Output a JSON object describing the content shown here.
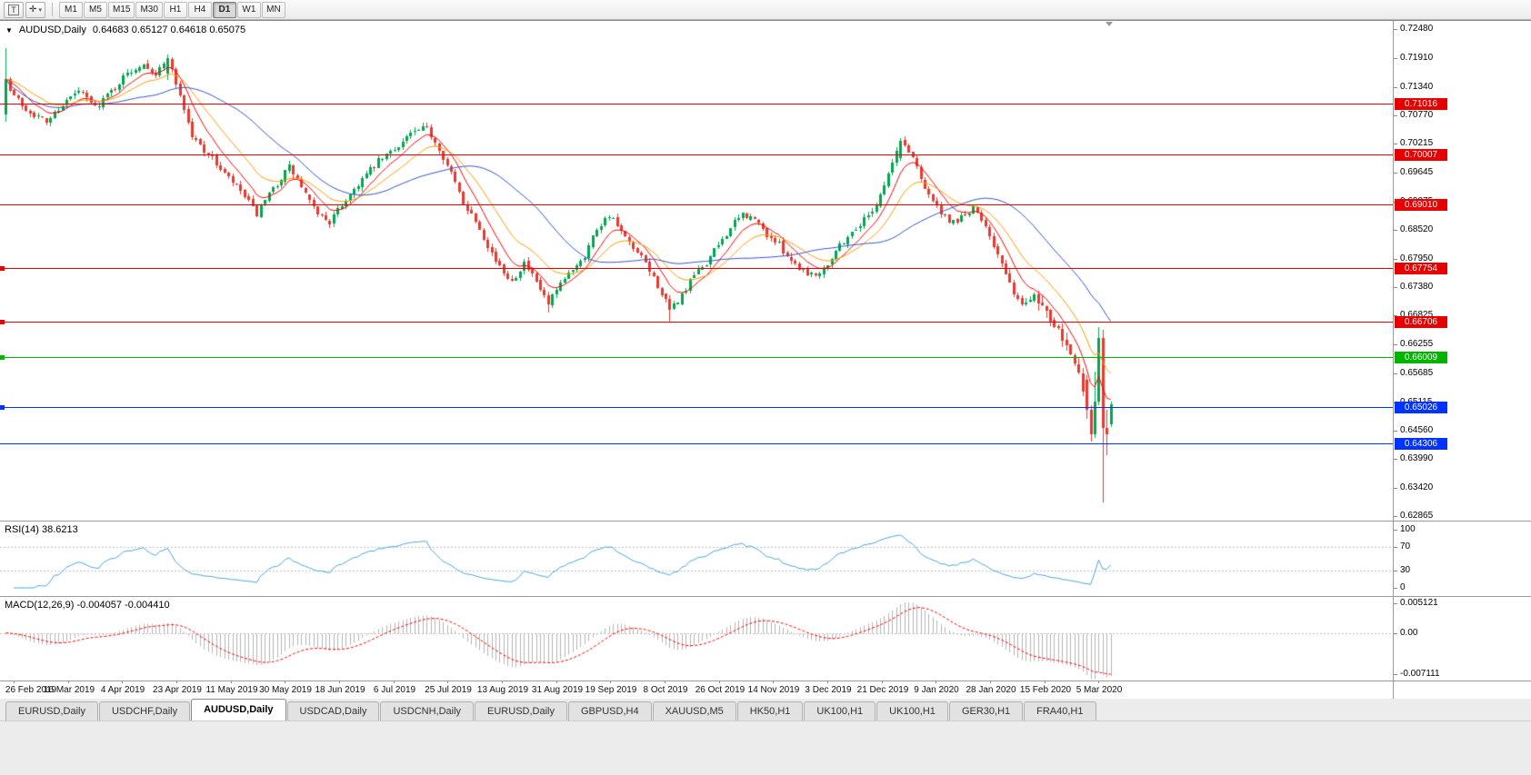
{
  "toolbar": {
    "template_icon_glyph": "T",
    "crosshair_icon_glyph": "✛",
    "caret_glyph": "▾",
    "timeframes": [
      {
        "label": "M1",
        "active": false
      },
      {
        "label": "M5",
        "active": false
      },
      {
        "label": "M15",
        "active": false
      },
      {
        "label": "M30",
        "active": false
      },
      {
        "label": "H1",
        "active": false
      },
      {
        "label": "H4",
        "active": false
      },
      {
        "label": "D1",
        "active": true
      },
      {
        "label": "W1",
        "active": false
      },
      {
        "label": "MN",
        "active": false
      }
    ]
  },
  "chart": {
    "title": {
      "triangle": "▼",
      "symbol": "AUDUSD,Daily",
      "ohlc": "0.64683 0.65127 0.64618 0.65075"
    },
    "rsi_label": "RSI(14) 38.6213",
    "macd_label": "MACD(12,26,9) -0.004057 -0.004410"
  },
  "chart_data": {
    "type": "candlestick",
    "symbol": "AUDUSD",
    "timeframe": "Daily",
    "ohlc_current": {
      "open": 0.64683,
      "high": 0.65127,
      "low": 0.64618,
      "close": 0.65075
    },
    "price_scale": {
      "max": 0.7248,
      "min": 0.62865
    },
    "y_axis_ticks": [
      0.7248,
      0.7191,
      0.7134,
      0.7077,
      0.70215,
      0.69645,
      0.69075,
      0.6852,
      0.6795,
      0.6738,
      0.66825,
      0.66255,
      0.65685,
      0.65115,
      0.6456,
      0.6399,
      0.6342,
      0.62865
    ],
    "x_axis_dates": [
      "26 Feb 2019",
      "16 Mar 2019",
      "4 Apr 2019",
      "23 Apr 2019",
      "11 May 2019",
      "30 May 2019",
      "18 Jun 2019",
      "6 Jul 2019",
      "25 Jul 2019",
      "13 Aug 2019",
      "31 Aug 2019",
      "19 Sep 2019",
      "8 Oct 2019",
      "26 Oct 2019",
      "14 Nov 2019",
      "3 Dec 2019",
      "21 Dec 2019",
      "9 Jan 2020",
      "28 Jan 2020",
      "15 Feb 2020",
      "5 Mar 2020"
    ],
    "num_candles": 274,
    "close_anchors": [
      [
        0,
        0.7135
      ],
      [
        5,
        0.709
      ],
      [
        10,
        0.7065
      ],
      [
        14,
        0.71
      ],
      [
        18,
        0.7125
      ],
      [
        22,
        0.7095
      ],
      [
        26,
        0.7125
      ],
      [
        30,
        0.716
      ],
      [
        34,
        0.7182
      ],
      [
        37,
        0.7158
      ],
      [
        40,
        0.719
      ],
      [
        43,
        0.7118
      ],
      [
        46,
        0.7035
      ],
      [
        50,
        0.7002
      ],
      [
        54,
        0.6962
      ],
      [
        58,
        0.6928
      ],
      [
        62,
        0.6882
      ],
      [
        66,
        0.6932
      ],
      [
        70,
        0.6976
      ],
      [
        73,
        0.6936
      ],
      [
        76,
        0.6892
      ],
      [
        80,
        0.6866
      ],
      [
        84,
        0.6912
      ],
      [
        88,
        0.6952
      ],
      [
        92,
        0.6986
      ],
      [
        96,
        0.7012
      ],
      [
        100,
        0.7042
      ],
      [
        104,
        0.7052
      ],
      [
        107,
        0.7012
      ],
      [
        110,
        0.6962
      ],
      [
        113,
        0.6906
      ],
      [
        116,
        0.6872
      ],
      [
        119,
        0.6822
      ],
      [
        122,
        0.6776
      ],
      [
        125,
        0.6752
      ],
      [
        128,
        0.6786
      ],
      [
        131,
        0.6746
      ],
      [
        134,
        0.6706
      ],
      [
        137,
        0.6742
      ],
      [
        140,
        0.6776
      ],
      [
        143,
        0.6802
      ],
      [
        146,
        0.6856
      ],
      [
        149,
        0.6882
      ],
      [
        152,
        0.6846
      ],
      [
        155,
        0.6812
      ],
      [
        158,
        0.6786
      ],
      [
        161,
        0.6742
      ],
      [
        164,
        0.6692
      ],
      [
        167,
        0.6722
      ],
      [
        170,
        0.6762
      ],
      [
        173,
        0.6786
      ],
      [
        176,
        0.6822
      ],
      [
        179,
        0.6856
      ],
      [
        182,
        0.6882
      ],
      [
        185,
        0.6872
      ],
      [
        188,
        0.6842
      ],
      [
        191,
        0.6822
      ],
      [
        194,
        0.6792
      ],
      [
        197,
        0.6772
      ],
      [
        200,
        0.6762
      ],
      [
        203,
        0.6786
      ],
      [
        206,
        0.6822
      ],
      [
        209,
        0.6846
      ],
      [
        212,
        0.6872
      ],
      [
        215,
        0.6902
      ],
      [
        218,
        0.6962
      ],
      [
        221,
        0.7028
      ],
      [
        224,
        0.6996
      ],
      [
        227,
        0.6936
      ],
      [
        230,
        0.6896
      ],
      [
        233,
        0.6862
      ],
      [
        236,
        0.6876
      ],
      [
        239,
        0.6892
      ],
      [
        242,
        0.6862
      ],
      [
        245,
        0.6802
      ],
      [
        248,
        0.6742
      ],
      [
        251,
        0.6702
      ],
      [
        254,
        0.6726
      ],
      [
        257,
        0.6692
      ],
      [
        260,
        0.6662
      ],
      [
        263,
        0.6612
      ],
      [
        265,
        0.6562
      ],
      [
        267,
        0.6496
      ],
      [
        268,
        0.6448
      ],
      [
        269,
        0.6512
      ],
      [
        270,
        0.6638
      ],
      [
        271,
        0.646
      ],
      [
        272,
        0.6448
      ],
      [
        273,
        0.65075
      ]
    ],
    "candle_overrides": {
      "0": [
        0.708,
        0.721,
        0.7065,
        0.715
      ],
      "40": [
        0.716,
        0.7197,
        0.7148,
        0.719
      ],
      "134": [
        0.6722,
        0.6729,
        0.6688,
        0.6705
      ],
      "164": [
        0.6716,
        0.6723,
        0.667,
        0.6694
      ],
      "221": [
        0.6994,
        0.7032,
        0.6988,
        0.7028
      ],
      "267": [
        0.6556,
        0.6564,
        0.6478,
        0.6496
      ],
      "268": [
        0.6496,
        0.6506,
        0.6433,
        0.6448
      ],
      "269": [
        0.6448,
        0.6572,
        0.644,
        0.6512
      ],
      "270": [
        0.6512,
        0.666,
        0.6505,
        0.6638
      ],
      "271": [
        0.6638,
        0.6654,
        0.6313,
        0.646
      ],
      "272": [
        0.646,
        0.6496,
        0.6406,
        0.6448
      ],
      "273": [
        0.64683,
        0.65127,
        0.64618,
        0.65075
      ]
    },
    "candle_colors": {
      "up": "#00a650",
      "down": "#e8392e"
    },
    "moving_averages": [
      {
        "type": "ema",
        "period": 8,
        "color": "#ff0000"
      },
      {
        "type": "ema",
        "period": 17,
        "color": "#ff9c00"
      },
      {
        "type": "sma",
        "period": 34,
        "color": "#3353cc"
      }
    ],
    "horizontal_lines": [
      {
        "price": 0.71016,
        "color": "#e60000",
        "handle": false
      },
      {
        "price": 0.70007,
        "color": "#e60000",
        "handle": false
      },
      {
        "price": 0.6901,
        "color": "#e60000",
        "handle": false
      },
      {
        "price": 0.67754,
        "color": "#e60000",
        "handle": true
      },
      {
        "price": 0.66706,
        "color": "#e60000",
        "handle": true
      },
      {
        "price": 0.66009,
        "color": "#00b400",
        "handle": true
      },
      {
        "price": 0.65026,
        "color": "#0033ff",
        "handle": true
      },
      {
        "price": 0.64306,
        "color": "#0033ff",
        "handle": false
      }
    ],
    "rsi": {
      "period": 14,
      "last_value": 38.6213,
      "levels": [
        70,
        30
      ],
      "scale": [
        0,
        100
      ],
      "color": "#49a6dd"
    },
    "macd": {
      "fast": 12,
      "slow": 26,
      "signal": 9,
      "last_main": -0.004057,
      "last_signal": -0.00441,
      "scale_max": 0.005121,
      "scale_min": -0.007111,
      "histogram_color": "#b5b5b5",
      "signal_color": "#ff0000"
    }
  },
  "tabs": {
    "active_index": 2,
    "items": [
      "EURUSD,Daily",
      "USDCHF,Daily",
      "AUDUSD,Daily",
      "USDCAD,Daily",
      "USDCNH,Daily",
      "EURUSD,Daily",
      "GBPUSD,H4",
      "XAUUSD,M5",
      "HK50,H1",
      "UK100,H1",
      "UK100,H1",
      "GER30,H1",
      "FRA40,H1"
    ]
  }
}
